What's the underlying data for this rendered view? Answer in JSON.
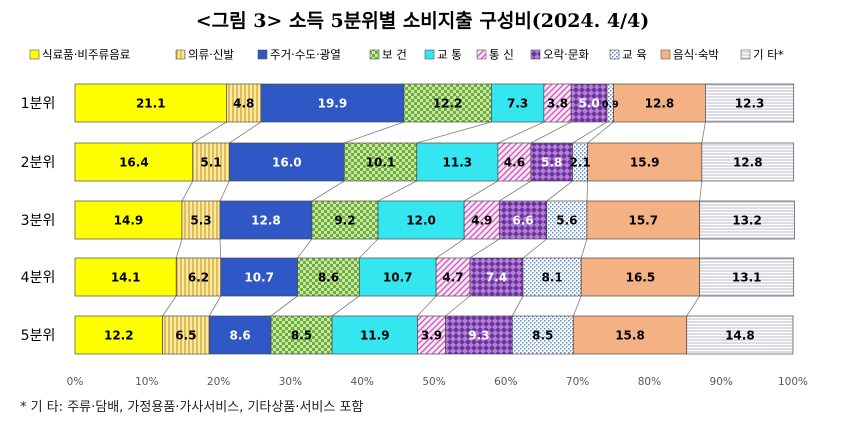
{
  "chart_data": {
    "type": "bar",
    "orientation": "horizontal",
    "stacked": true,
    "percent": true,
    "title": "<그림 3> 소득 5분위별 소비지출 구성비(2024. 4/4)",
    "categories": [
      "1분위",
      "2분위",
      "3분위",
      "4분위",
      "5분위"
    ],
    "series": [
      {
        "name": "식료품·비주류음료",
        "color": "#ffff00",
        "pattern": "solid",
        "values": [
          21.1,
          16.4,
          14.9,
          14.1,
          12.2
        ]
      },
      {
        "name": "의류·신발",
        "color": "#ffe17a",
        "pattern": "vlines",
        "values": [
          4.8,
          5.1,
          5.3,
          6.2,
          6.5
        ]
      },
      {
        "name": "주거·수도·광열",
        "color": "#2f57c6",
        "pattern": "solid",
        "values": [
          19.9,
          16.0,
          12.8,
          10.7,
          8.6
        ]
      },
      {
        "name": "보 건",
        "color": "#92d050",
        "pattern": "checker",
        "values": [
          12.2,
          10.1,
          9.2,
          8.6,
          8.5
        ]
      },
      {
        "name": "교 통",
        "color": "#33e6f0",
        "pattern": "solid",
        "values": [
          7.3,
          11.3,
          12.0,
          10.7,
          11.9
        ]
      },
      {
        "name": "통 신",
        "color": "#e8a0e0",
        "pattern": "diag",
        "values": [
          3.8,
          4.6,
          4.9,
          4.7,
          3.9
        ]
      },
      {
        "name": "오락·문화",
        "color": "#7030a0",
        "pattern": "diamond",
        "values": [
          5.0,
          5.8,
          6.6,
          7.4,
          9.3
        ]
      },
      {
        "name": "교 육",
        "color": "#9dc3e6",
        "pattern": "dots",
        "values": [
          0.9,
          2.1,
          5.6,
          8.1,
          8.5
        ]
      },
      {
        "name": "음식·숙박",
        "color": "#f4b183",
        "pattern": "solid",
        "values": [
          12.8,
          15.9,
          15.7,
          16.5,
          15.8
        ]
      },
      {
        "name": "기 타*",
        "color": "#d9d9e8",
        "pattern": "hlines",
        "values": [
          12.3,
          12.8,
          13.2,
          13.1,
          14.8
        ]
      }
    ],
    "xlim": [
      0,
      100
    ],
    "xticks": [
      "0%",
      "10%",
      "20%",
      "30%",
      "40%",
      "50%",
      "60%",
      "70%",
      "80%",
      "90%",
      "100%"
    ],
    "grid": false,
    "legend_position": "top",
    "connector_lines": true
  },
  "footnote": "* 기 타: 주류·담배, 가정용품·가사서비스, 기타상품·서비스 포함"
}
